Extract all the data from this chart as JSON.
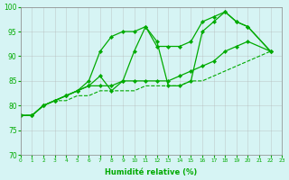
{
  "xlabel": "Humidité relative (%)",
  "background_color": "#d6f4f4",
  "grid_color": "#b0b0b0",
  "line_color": "#00aa00",
  "xlim": [
    0,
    23
  ],
  "ylim": [
    70,
    100
  ],
  "xticks": [
    0,
    1,
    2,
    3,
    4,
    5,
    6,
    7,
    8,
    9,
    10,
    11,
    12,
    13,
    14,
    15,
    16,
    17,
    18,
    19,
    20,
    21,
    22,
    23
  ],
  "yticks": [
    70,
    75,
    80,
    85,
    90,
    95,
    100
  ],
  "series": [
    {
      "x": [
        0,
        1,
        2,
        3,
        4,
        5,
        6,
        7,
        8,
        9,
        10,
        11,
        12,
        13,
        14,
        15,
        16,
        17,
        18,
        19,
        20,
        22
      ],
      "y": [
        78,
        78,
        80,
        81,
        82,
        83,
        85,
        91,
        94,
        95,
        95,
        96,
        92,
        92,
        92,
        93,
        97,
        98,
        99,
        97,
        96,
        91
      ],
      "style": "solid",
      "marker": true
    },
    {
      "x": [
        0,
        1,
        2,
        3,
        4,
        5,
        6,
        7,
        8,
        9,
        10,
        11,
        12,
        13,
        14,
        15,
        16,
        17,
        18,
        19,
        20,
        22
      ],
      "y": [
        78,
        78,
        80,
        81,
        82,
        83,
        84,
        86,
        83,
        85,
        91,
        96,
        93,
        84,
        84,
        85,
        95,
        97,
        99,
        97,
        96,
        91
      ],
      "style": "solid",
      "marker": true
    },
    {
      "x": [
        0,
        1,
        2,
        3,
        4,
        5,
        6,
        7,
        8,
        9,
        10,
        11,
        12,
        13,
        14,
        15,
        16,
        17,
        18,
        19,
        20,
        22
      ],
      "y": [
        78,
        78,
        80,
        81,
        82,
        83,
        84,
        84,
        84,
        85,
        85,
        85,
        85,
        85,
        86,
        87,
        88,
        89,
        91,
        92,
        93,
        91
      ],
      "style": "solid",
      "marker": true
    },
    {
      "x": [
        0,
        1,
        2,
        3,
        4,
        5,
        6,
        7,
        8,
        9,
        10,
        11,
        12,
        13,
        14,
        15,
        16,
        17,
        18,
        19,
        20,
        22
      ],
      "y": [
        78,
        78,
        80,
        81,
        81,
        82,
        82,
        83,
        83,
        83,
        83,
        84,
        84,
        84,
        84,
        85,
        85,
        86,
        87,
        88,
        89,
        91
      ],
      "style": "dashed",
      "marker": false
    }
  ]
}
